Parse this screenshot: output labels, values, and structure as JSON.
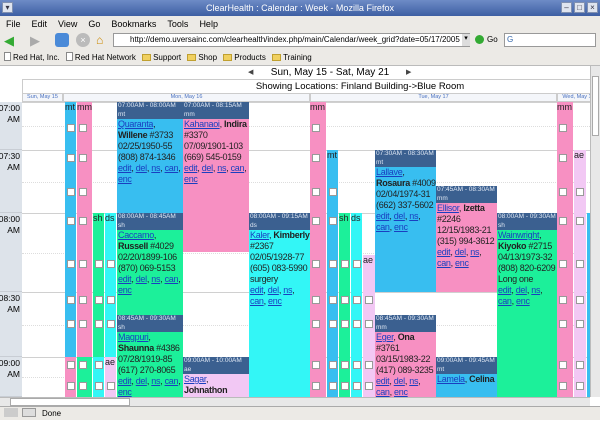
{
  "window": {
    "title": "ClearHealth : Calendar : Week - Mozilla Firefox"
  },
  "menu": [
    "File",
    "Edit",
    "View",
    "Go",
    "Bookmarks",
    "Tools",
    "Help"
  ],
  "nav": {
    "url": "http://demo.uversainc.com/clearhealth/index.php/main/Calendar/week_grid?date=05/17/2005",
    "go_label": "Go",
    "search_value": "G"
  },
  "bookmarks": [
    {
      "label": "Red Hat, Inc.",
      "type": "page"
    },
    {
      "label": "Red Hat Network",
      "type": "page"
    },
    {
      "label": "Support",
      "type": "folder"
    },
    {
      "label": "Shop",
      "type": "folder"
    },
    {
      "label": "Products",
      "type": "folder"
    },
    {
      "label": "Training",
      "type": "folder"
    }
  ],
  "calendar": {
    "range": "Sun, May 15 - Sat, May 21",
    "prev": "◀",
    "next": "▶",
    "locations": "Showing Locations: Finland Building->Blue Room",
    "days": [
      "Sun, May 15",
      "Mon, May 16",
      "Tue, May 17",
      "Wed, May 18"
    ],
    "times": [
      "07:00 AM",
      "07:30 AM",
      "08:00 AM",
      "08:30 AM",
      "09:00 AM"
    ],
    "colors": {
      "mt": "#38bef0",
      "mm": "#f790c2",
      "sh": "#1cf09a",
      "ds": "#33f6f6",
      "ae": "#f2c8f4",
      "header": "#3b6090"
    },
    "slot_labels": {
      "mt": "mt",
      "mm": "mm",
      "sh": "sh",
      "ds": "ds",
      "ae": "ae"
    },
    "links": [
      "edit",
      "del",
      "ns",
      "can",
      "enc"
    ],
    "appointments": [
      {
        "time": "07:00AM - 08:00AM",
        "provider": "mt",
        "last": "Quaranta",
        "first": "Willene",
        "id": "#3733",
        "dob": "02/25/1950-55",
        "phone": "(808) 874-1346",
        "note": ""
      },
      {
        "time": "07:00AM - 08:15AM",
        "provider": "mm",
        "last": "Kahanaoi",
        "first": "Indira",
        "id": "#3370",
        "dob": "07/09/1901-103",
        "phone": "(669) 545-0159",
        "note": ""
      },
      {
        "time": "08:00AM - 08:45AM",
        "provider": "sh",
        "last": "Caccamo",
        "first": "Russell",
        "id": "#4029",
        "dob": "02/20/1899-106",
        "phone": "(870) 069-5153",
        "note": ""
      },
      {
        "time": "08:45AM - 09:30AM",
        "provider": "sh",
        "last": "Magpuri",
        "first": "Shaunna",
        "id": "#4386",
        "dob": "07/28/1919-85",
        "phone": "(617) 270-8065",
        "note": ""
      },
      {
        "time": "08:00AM - 09:15AM",
        "provider": "ds",
        "last": "Kaler",
        "first": "Kimberly",
        "id": "#2367",
        "dob": "02/05/1928-77",
        "phone": "(605) 083-5990",
        "note": "surgery"
      },
      {
        "time": "09:00AM - 10:00AM",
        "provider": "ae",
        "last": "Sagar",
        "first": "Johnathon",
        "id": "",
        "dob": "",
        "phone": "",
        "note": ""
      },
      {
        "time": "07:30AM - 08:30AM",
        "provider": "mt",
        "last": "Lallave",
        "first": "Rosaura",
        "id": "#4009",
        "dob": "02/04/1974-31",
        "phone": "(662) 337-5602",
        "note": ""
      },
      {
        "time": "07:45AM - 08:30AM",
        "provider": "mm",
        "last": "Ellisor",
        "first": "Izetta",
        "id": "#2246",
        "dob": "12/15/1983-21",
        "phone": "(315) 994-3612",
        "note": ""
      },
      {
        "time": "08:00AM - 09:30AM",
        "provider": "sh",
        "last": "Wainwright",
        "first": "Kiyoko",
        "id": "#2715",
        "dob": "04/13/1973-32",
        "phone": "(808) 820-6209",
        "note": "Long one"
      },
      {
        "time": "08:45AM - 09:30AM",
        "provider": "mm",
        "last": "Eger",
        "first": "Ona",
        "id": "#3761",
        "dob": "03/15/1983-22",
        "phone": "(417) 089-3235",
        "note": ""
      },
      {
        "time": "09:00AM - 09:45AM",
        "provider": "mt",
        "last": "Lamela",
        "first": "Celina",
        "id": "",
        "dob": "",
        "phone": "",
        "note": ""
      }
    ]
  },
  "status": {
    "text": "Done"
  }
}
